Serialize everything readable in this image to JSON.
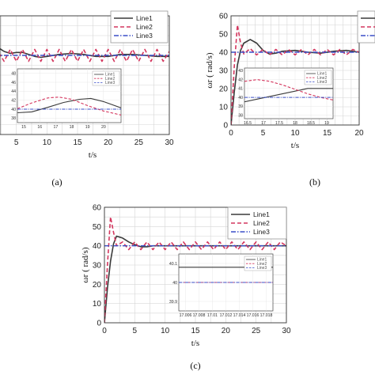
{
  "colors": {
    "line1": "#3a3a3a",
    "line2": "#d4365e",
    "line3": "#3a4fc8"
  },
  "chart_data": [
    {
      "type": "line",
      "caption": "(a)",
      "xlabel": "t/s",
      "xlim": [
        0,
        30
      ],
      "ylim": [
        0,
        60
      ],
      "xticks": [
        "5",
        "10",
        "15",
        "20",
        "25",
        "30"
      ],
      "yticks": [],
      "legend": {
        "placement": "top-right",
        "entries": [
          "Line1",
          "Line2",
          "Line3"
        ]
      },
      "series": [
        {
          "name": "Line1",
          "x": [
            0,
            1,
            2,
            3,
            4,
            5,
            6,
            7,
            8,
            9,
            10,
            12,
            14,
            16,
            18,
            20,
            22,
            24,
            26,
            28,
            30
          ],
          "y": [
            50,
            47,
            44,
            42,
            41,
            41.5,
            41.5,
            40.5,
            39.5,
            39,
            39.5,
            40.5,
            41,
            40.5,
            39.5,
            39.5,
            40.5,
            40.5,
            40,
            39.5,
            39.5
          ]
        },
        {
          "name": "Line2",
          "x": [
            0,
            1,
            2,
            3,
            4,
            5,
            6,
            7,
            8,
            9,
            10,
            11,
            12,
            13,
            14,
            15,
            16,
            17,
            18,
            19,
            20,
            21,
            22,
            23,
            24,
            25,
            26,
            27,
            28,
            29,
            30
          ],
          "y": [
            40,
            38,
            42,
            37,
            43,
            37,
            43,
            37,
            43,
            37,
            43,
            37,
            43,
            37,
            43,
            37,
            43,
            37,
            43,
            37,
            43,
            37,
            43,
            37,
            43,
            37,
            43,
            37,
            43,
            37,
            42
          ]
        },
        {
          "name": "Line3",
          "x": [
            0,
            30
          ],
          "y": [
            40,
            40
          ]
        }
      ],
      "inset": {
        "xticks": [
          "15",
          "16",
          "17",
          "18",
          "19",
          "20"
        ],
        "yticks": [
          "38",
          "40",
          "42",
          "44",
          "46",
          "48"
        ],
        "legend": [
          "Line1",
          "Line2",
          "Line3"
        ],
        "xlim": [
          14.6,
          21.1
        ],
        "ylim": [
          37,
          49
        ],
        "series": [
          {
            "name": "Line1",
            "x": [
              14.6,
              15.5,
              16.5,
              17.5,
              18.5,
              19.2,
              20,
              21.1
            ],
            "y": [
              39.2,
              39.4,
              40.4,
              41.5,
              42.2,
              42.4,
              41.7,
              40.3
            ]
          },
          {
            "name": "Line2",
            "x": [
              14.6,
              15.5,
              16.5,
              17.2,
              18,
              19,
              20,
              21.1
            ],
            "y": [
              40.1,
              41.4,
              42.5,
              42.7,
              42.2,
              40.8,
              39.6,
              38.7
            ]
          },
          {
            "name": "Line3",
            "x": [
              14.6,
              21.1
            ],
            "y": [
              40,
              40
            ]
          }
        ]
      }
    },
    {
      "type": "line",
      "caption": "(b)",
      "xlabel": "t/s",
      "ylabel": "ωr ( rad/s)",
      "xlim": [
        0,
        20
      ],
      "ylim": [
        0,
        60
      ],
      "xticks": [
        "0",
        "5",
        "10",
        "15",
        "20"
      ],
      "yticks": [
        "0",
        "10",
        "20",
        "30",
        "40",
        "50",
        "60"
      ],
      "legend": {
        "placement": "top-right",
        "entries": [
          "",
          "",
          ""
        ]
      },
      "series": [
        {
          "name": "Line1",
          "x": [
            0,
            0.5,
            1,
            1.5,
            2,
            3,
            4,
            5,
            6,
            7,
            8,
            10,
            12,
            14,
            16,
            18,
            20
          ],
          "y": [
            0,
            18,
            33,
            41,
            45,
            47,
            45,
            41,
            39,
            39.5,
            40.5,
            41,
            40,
            39.5,
            40.5,
            41,
            40
          ]
        },
        {
          "name": "Line2",
          "x": [
            0,
            0.5,
            1,
            1.5,
            2,
            3,
            4,
            5,
            6,
            7,
            8,
            9,
            10,
            11,
            12,
            13,
            14,
            15,
            16,
            17,
            18,
            19,
            20
          ],
          "y": [
            0,
            32,
            55,
            45,
            39,
            42,
            38.5,
            41.5,
            38.5,
            41.5,
            38.5,
            41.5,
            38.5,
            41.5,
            38.5,
            41.5,
            38.5,
            41.5,
            38.5,
            41.5,
            38.5,
            41.5,
            40
          ]
        },
        {
          "name": "Line3",
          "x": [
            0,
            20
          ],
          "y": [
            40,
            40
          ]
        }
      ],
      "inset": {
        "xticks": [
          "16.5",
          "17",
          "17.5",
          "18",
          "18.5",
          "19"
        ],
        "yticks": [
          "38",
          "39",
          "40",
          "41",
          "42",
          "43"
        ],
        "legend": [
          "Line1",
          "Line2",
          "Line3"
        ],
        "xlim": [
          16.4,
          19.2
        ],
        "ylim": [
          37.6,
          43.3
        ],
        "series": [
          {
            "name": "Line1",
            "x": [
              16.4,
              16.8,
              17.2,
              17.6,
              18,
              18.4,
              18.8,
              19.2
            ],
            "y": [
              39.5,
              39.8,
              40.1,
              40.4,
              40.7,
              41,
              41,
              41
            ]
          },
          {
            "name": "Line2",
            "x": [
              16.4,
              16.8,
              17.2,
              17.6,
              18,
              18.4,
              18.8,
              19.2
            ],
            "y": [
              41.8,
              42.0,
              41.8,
              41.4,
              40.9,
              40.4,
              40.0,
              39.7
            ]
          },
          {
            "name": "Line3",
            "x": [
              16.4,
              19.2
            ],
            "y": [
              40,
              40
            ]
          }
        ]
      }
    },
    {
      "type": "line",
      "caption": "(c)",
      "xlabel": "t/s",
      "ylabel": "ωr ( rad/s)",
      "xlim": [
        0,
        30
      ],
      "ylim": [
        0,
        60
      ],
      "xticks": [
        "0",
        "5",
        "10",
        "15",
        "20",
        "25",
        "30"
      ],
      "yticks": [
        "0",
        "10",
        "20",
        "30",
        "40",
        "50",
        "60"
      ],
      "legend": {
        "placement": "top-right",
        "entries": [
          "Line1",
          "Line2",
          "Line3"
        ]
      },
      "series": [
        {
          "name": "Line1",
          "x": [
            0,
            0.5,
            1,
            1.5,
            2,
            3,
            4,
            5,
            6,
            7,
            8,
            10,
            15,
            20,
            25,
            30
          ],
          "y": [
            0,
            18,
            32,
            41,
            45,
            44,
            42,
            40.5,
            39.5,
            39.5,
            40,
            40,
            40,
            40,
            40,
            40
          ]
        },
        {
          "name": "Line2",
          "x": [
            0,
            0.5,
            1,
            1.5,
            2,
            3,
            4,
            5,
            6,
            7,
            8,
            9,
            10,
            11,
            12,
            13,
            14,
            15,
            16,
            17,
            18,
            19,
            20,
            21,
            22,
            23,
            24,
            25,
            26,
            27,
            28,
            29,
            30
          ],
          "y": [
            0,
            30,
            55,
            47,
            40,
            42,
            38,
            42,
            38,
            42,
            38,
            42,
            38,
            42,
            38,
            42,
            38,
            42,
            38,
            42,
            38,
            42,
            38,
            42,
            38,
            42,
            38,
            42,
            38,
            42,
            38,
            42,
            40
          ]
        },
        {
          "name": "Line3",
          "x": [
            0,
            30
          ],
          "y": [
            40,
            40
          ]
        }
      ],
      "inset": {
        "xticks": [
          "17.006",
          "17.008",
          "17.01",
          "17.012",
          "17.014",
          "17.016",
          "17.018"
        ],
        "yticks": [
          "39.9",
          "40",
          "40.1"
        ],
        "legend": [
          "Line1",
          "Line2",
          "Line3"
        ],
        "xlim": [
          17.005,
          17.019
        ],
        "ylim": [
          39.85,
          40.15
        ],
        "series": [
          {
            "name": "Line1",
            "x": [
              17.005,
              17.019
            ],
            "y": [
              40.08,
              40.08
            ]
          },
          {
            "name": "Line2",
            "x": [
              17.005,
              17.019
            ],
            "y": [
              40.0,
              40.0
            ]
          },
          {
            "name": "Line3",
            "x": [
              17.005,
              17.019
            ],
            "y": [
              40.0,
              40.0
            ]
          }
        ]
      }
    }
  ]
}
